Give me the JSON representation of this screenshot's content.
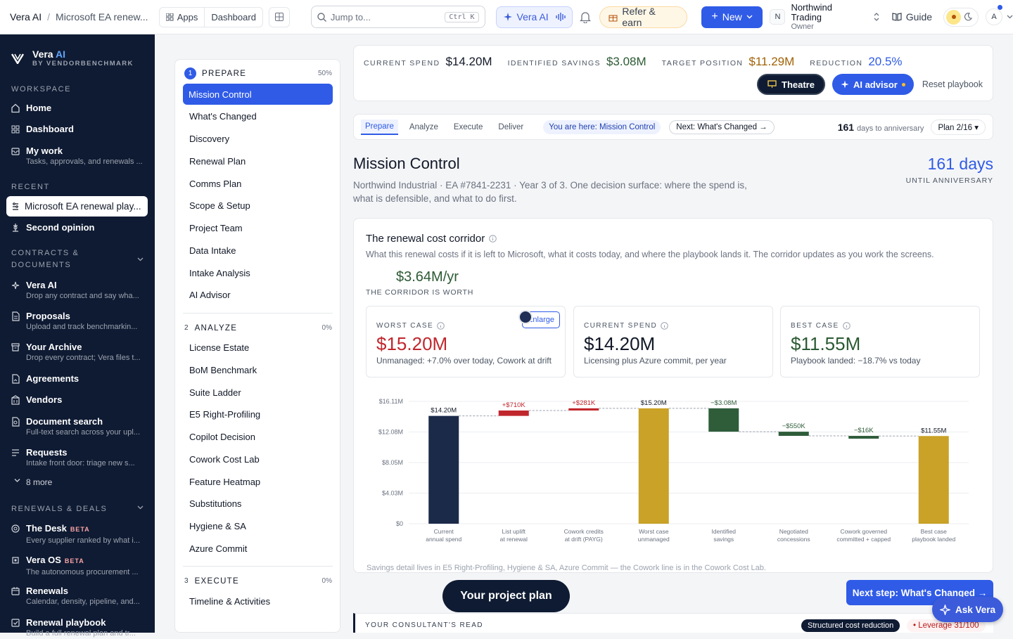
{
  "topbar": {
    "brand": "Vera AI",
    "crumb_current": "Microsoft EA renew...",
    "apps_label": "Apps",
    "dashboard_label": "Dashboard",
    "search_placeholder": "Jump to...",
    "search_shortcut": "Ctrl K",
    "vera_label": "Vera AI",
    "refer_label": "Refer & earn",
    "new_label": "New",
    "org_initial": "N",
    "org_name": "Northwind Trading",
    "org_role": "Owner",
    "guide_label": "Guide",
    "user_initial": "A"
  },
  "sidebar": {
    "brand_title": "Vera",
    "brand_ai": "AI",
    "brand_sub": "BY VENDORBENCHMARK",
    "workspace_label": "WORKSPACE",
    "workspace": [
      {
        "label": "Home",
        "sub": ""
      },
      {
        "label": "Dashboard",
        "sub": ""
      },
      {
        "label": "My work",
        "sub": "Tasks, approvals, and renewals ..."
      }
    ],
    "recent_label": "RECENT",
    "recent": [
      {
        "label": "Microsoft EA renewal play..."
      },
      {
        "label": "Second opinion"
      }
    ],
    "contracts_label": "CONTRACTS & DOCUMENTS",
    "contracts": [
      {
        "label": "Vera AI",
        "sub": "Drop any contract and say wha..."
      },
      {
        "label": "Proposals",
        "sub": "Upload and track benchmarkin..."
      },
      {
        "label": "Your Archive",
        "sub": "Drop every contract; Vera files t..."
      },
      {
        "label": "Agreements",
        "sub": ""
      },
      {
        "label": "Vendors",
        "sub": ""
      },
      {
        "label": "Document search",
        "sub": "Full-text search across your upl..."
      },
      {
        "label": "Requests",
        "sub": "Intake front door: triage new s..."
      }
    ],
    "more_label": "8 more",
    "renewals_label": "RENEWALS & DEALS",
    "renewals": [
      {
        "label": "The Desk",
        "badge": "BETA",
        "sub": "Every supplier ranked by what i..."
      },
      {
        "label": "Vera OS",
        "badge": "BETA",
        "sub": "The autonomous procurement ..."
      },
      {
        "label": "Renewals",
        "badge": "",
        "sub": "Calendar, density, pipeline, and..."
      },
      {
        "label": "Renewal playbook",
        "badge": "",
        "sub": "Build a full renewal plan and tr..."
      }
    ]
  },
  "steps": {
    "phases": [
      {
        "num": "1",
        "label": "PREPARE",
        "pct": "50%"
      },
      {
        "num": "2",
        "label": "ANALYZE",
        "pct": "0%"
      },
      {
        "num": "3",
        "label": "EXECUTE",
        "pct": "0%"
      }
    ],
    "prepare": [
      "Mission Control",
      "What's Changed",
      "Discovery",
      "Renewal Plan",
      "Comms Plan",
      "Scope & Setup",
      "Project Team",
      "Data Intake",
      "Intake Analysis",
      "AI Advisor"
    ],
    "analyze": [
      "License Estate",
      "BoM Benchmark",
      "Suite Ladder",
      "E5 Right-Profiling",
      "Copilot Decision",
      "Cowork Cost Lab",
      "Feature Heatmap",
      "Substitutions",
      "Hygiene & SA",
      "Azure Commit"
    ],
    "execute": [
      "Timeline & Activities"
    ]
  },
  "metrics": {
    "current_spend_label": "CURRENT SPEND",
    "current_spend": "$14.20M",
    "savings_label": "IDENTIFIED SAVINGS",
    "savings": "$3.08M",
    "target_label": "TARGET POSITION",
    "target": "$11.29M",
    "reduction_label": "REDUCTION",
    "reduction": "20.5%",
    "theatre_label": "Theatre",
    "advisor_label": "AI advisor",
    "reset_label": "Reset playbook"
  },
  "tabs": {
    "items": [
      "Prepare",
      "Analyze",
      "Execute",
      "Deliver"
    ],
    "here": "You are here: Mission Control",
    "next": "Next: What's Changed →",
    "days_num": "161",
    "days_label": "days to anniversary",
    "plan": "Plan 2/16 ▾"
  },
  "page": {
    "title": "Mission Control",
    "desc": "Northwind Industrial · EA #7841-2231 · Year 3 of 3. One decision surface: where the spend is, what is defensible, and what to do first.",
    "big_days": "161 days",
    "big_days_label": "UNTIL ANNIVERSARY"
  },
  "corridor": {
    "title": "The renewal cost corridor",
    "subtitle": "What this renewal costs if it is left to Microsoft, what it costs today, and where the playbook lands it. The corridor updates as you work the screens.",
    "worth": "$3.64M/yr",
    "worth_label": "THE CORRIDOR IS WORTH",
    "enlarge_label": "Enlarge",
    "scenarios": [
      {
        "label": "WORST CASE",
        "value": "$15.20M",
        "desc": "Unmanaged: +7.0% over today, Cowork at drift",
        "color": "#c0272d"
      },
      {
        "label": "CURRENT SPEND",
        "value": "$14.20M",
        "desc": "Licensing plus Azure commit, per year",
        "color": "#111827"
      },
      {
        "label": "BEST CASE",
        "value": "$11.55M",
        "desc": "Playbook landed: −18.7% vs today",
        "color": "#2b5a33"
      }
    ],
    "footnote": "Savings detail lives in E5 Right-Profiling, Hygiene & SA, Azure Commit — the Cowork line is in the Cowork Cost Lab."
  },
  "chart_data": {
    "type": "bar",
    "subtype": "waterfall",
    "ylim": [
      0,
      16.11
    ],
    "yticks": [
      "$0",
      "$4.03M",
      "$8.05M",
      "$12.08M",
      "$16.11M"
    ],
    "ytick_values": [
      0,
      4.03,
      8.05,
      12.08,
      16.11
    ],
    "categories": [
      [
        "Current",
        "annual spend"
      ],
      [
        "List uplift",
        "at renewal"
      ],
      [
        "Cowork credits",
        "at drift (PAYG)"
      ],
      [
        "Worst case",
        "unmanaged"
      ],
      [
        "Identified",
        "savings"
      ],
      [
        "Negotiated",
        "concessions"
      ],
      [
        "Cowork governed",
        "committed + capped"
      ],
      [
        "Best case",
        "playbook landed"
      ]
    ],
    "bars": [
      {
        "kind": "total",
        "start": 0,
        "end": 14.2,
        "label": "$14.20M",
        "color": "#1c2a4a"
      },
      {
        "kind": "delta",
        "start": 14.2,
        "end": 14.91,
        "label": "+$710K",
        "color": "#c0272d"
      },
      {
        "kind": "delta",
        "start": 14.91,
        "end": 15.2,
        "label": "+$281K",
        "color": "#c0272d"
      },
      {
        "kind": "total",
        "start": 0,
        "end": 15.2,
        "label": "$15.20M",
        "color": "#c9a227"
      },
      {
        "kind": "delta",
        "start": 15.2,
        "end": 12.12,
        "label": "−$3.08M",
        "color": "#2f5d3a"
      },
      {
        "kind": "delta",
        "start": 12.12,
        "end": 11.57,
        "label": "−$550K",
        "color": "#2f5d3a"
      },
      {
        "kind": "delta",
        "start": 11.57,
        "end": 11.55,
        "label": "−$16K",
        "color": "#2f5d3a"
      },
      {
        "kind": "total",
        "start": 0,
        "end": 11.55,
        "label": "$11.55M",
        "color": "#c9a227"
      }
    ]
  },
  "bottom": {
    "project_plan": "Your project plan",
    "next_step": "Next step: What's Changed →",
    "ask_vera": "Ask Vera",
    "read_label": "YOUR CONSULTANT'S READ",
    "chip": "Structured cost reduction",
    "leverage": "• Leverage 31/100"
  }
}
